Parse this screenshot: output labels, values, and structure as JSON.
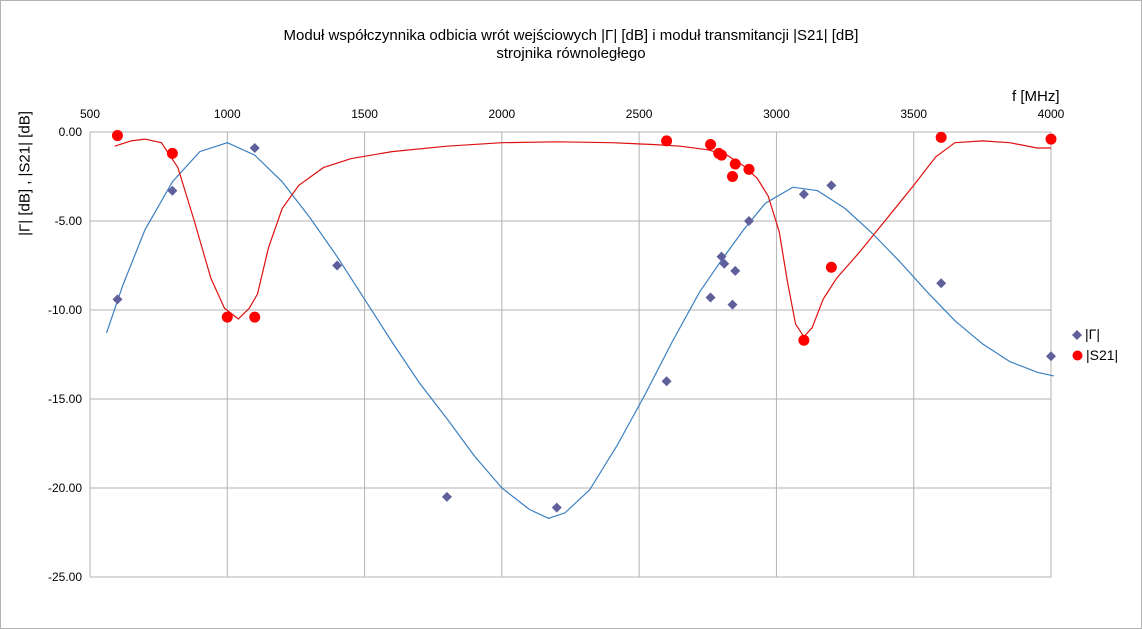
{
  "chart_data": {
    "type": "scatter",
    "title": "Moduł współczynnika odbicia wrót wejściowych |Γ| [dB] i moduł transmitancji   |S21| [dB]",
    "subtitle": "strojnika równoległego",
    "xlabel": "f [MHz]",
    "ylabel": "|Γ| [dB] , |S21| [dB]",
    "xlim": [
      500,
      4000
    ],
    "ylim": [
      -25,
      0
    ],
    "x_ticks": [
      "500",
      "1000",
      "1500",
      "2000",
      "2500",
      "3000",
      "3500",
      "4000"
    ],
    "y_ticks": [
      "0.00",
      "-5.00",
      "-10.00",
      "-15.00",
      "-20.00",
      "-25.00"
    ],
    "x_axis_position": "top",
    "grid": true,
    "legend_position": "right",
    "series": [
      {
        "name": "|Γ|",
        "color": "#5f5f9c",
        "marker": "diamond",
        "line_color": "#3b7fc0",
        "points": [
          [
            600,
            -9.4
          ],
          [
            800,
            -3.3
          ],
          [
            1100,
            -0.9
          ],
          [
            1400,
            -7.5
          ],
          [
            1800,
            -20.5
          ],
          [
            2200,
            -21.1
          ],
          [
            2600,
            -14.0
          ],
          [
            2760,
            -9.3
          ],
          [
            2800,
            -7.0
          ],
          [
            2810,
            -7.4
          ],
          [
            2840,
            -9.7
          ],
          [
            2850,
            -7.8
          ],
          [
            2900,
            -5.0
          ],
          [
            3100,
            -3.5
          ],
          [
            3200,
            -3.0
          ],
          [
            3600,
            -8.5
          ],
          [
            4000,
            -12.6
          ]
        ],
        "trend": [
          [
            560,
            -11.3
          ],
          [
            620,
            -8.6
          ],
          [
            700,
            -5.5
          ],
          [
            800,
            -2.8
          ],
          [
            900,
            -1.1
          ],
          [
            1000,
            -0.6
          ],
          [
            1100,
            -1.3
          ],
          [
            1200,
            -2.8
          ],
          [
            1300,
            -4.8
          ],
          [
            1400,
            -7.0
          ],
          [
            1500,
            -9.4
          ],
          [
            1600,
            -11.8
          ],
          [
            1700,
            -14.1
          ],
          [
            1800,
            -16.1
          ],
          [
            1900,
            -18.2
          ],
          [
            2000,
            -20.0
          ],
          [
            2100,
            -21.2
          ],
          [
            2170,
            -21.7
          ],
          [
            2230,
            -21.4
          ],
          [
            2320,
            -20.1
          ],
          [
            2420,
            -17.6
          ],
          [
            2520,
            -14.8
          ],
          [
            2620,
            -11.8
          ],
          [
            2720,
            -9.0
          ],
          [
            2800,
            -7.2
          ],
          [
            2880,
            -5.5
          ],
          [
            2960,
            -4.0
          ],
          [
            3060,
            -3.1
          ],
          [
            3150,
            -3.3
          ],
          [
            3250,
            -4.3
          ],
          [
            3350,
            -5.7
          ],
          [
            3450,
            -7.3
          ],
          [
            3550,
            -9.0
          ],
          [
            3650,
            -10.6
          ],
          [
            3750,
            -11.9
          ],
          [
            3850,
            -12.9
          ],
          [
            3950,
            -13.5
          ],
          [
            4010,
            -13.7
          ]
        ]
      },
      {
        "name": "|S21|",
        "color": "#ff0000",
        "marker": "circle",
        "line_color": "#e01010",
        "points": [
          [
            600,
            -0.2
          ],
          [
            800,
            -1.2
          ],
          [
            1000,
            -10.4
          ],
          [
            1100,
            -10.4
          ],
          [
            2600,
            -0.5
          ],
          [
            2760,
            -0.7
          ],
          [
            2790,
            -1.2
          ],
          [
            2800,
            -1.3
          ],
          [
            2840,
            -2.5
          ],
          [
            2850,
            -1.8
          ],
          [
            2900,
            -2.1
          ],
          [
            3100,
            -11.7
          ],
          [
            3200,
            -7.6
          ],
          [
            3600,
            -0.3
          ],
          [
            4000,
            -0.4
          ]
        ],
        "trend": [
          [
            590,
            -0.8
          ],
          [
            650,
            -0.5
          ],
          [
            700,
            -0.4
          ],
          [
            760,
            -0.6
          ],
          [
            820,
            -2.0
          ],
          [
            880,
            -5.0
          ],
          [
            940,
            -8.2
          ],
          [
            990,
            -9.9
          ],
          [
            1040,
            -10.5
          ],
          [
            1080,
            -9.9
          ],
          [
            1110,
            -9.1
          ],
          [
            1150,
            -6.5
          ],
          [
            1200,
            -4.3
          ],
          [
            1260,
            -3.0
          ],
          [
            1350,
            -2.0
          ],
          [
            1450,
            -1.5
          ],
          [
            1600,
            -1.1
          ],
          [
            1800,
            -0.8
          ],
          [
            2000,
            -0.6
          ],
          [
            2200,
            -0.55
          ],
          [
            2400,
            -0.6
          ],
          [
            2550,
            -0.7
          ],
          [
            2650,
            -0.8
          ],
          [
            2750,
            -1.0
          ],
          [
            2820,
            -1.3
          ],
          [
            2880,
            -1.9
          ],
          [
            2930,
            -2.6
          ],
          [
            2970,
            -3.6
          ],
          [
            3010,
            -5.6
          ],
          [
            3040,
            -8.4
          ],
          [
            3070,
            -10.8
          ],
          [
            3100,
            -11.5
          ],
          [
            3130,
            -11.0
          ],
          [
            3170,
            -9.4
          ],
          [
            3220,
            -8.2
          ],
          [
            3300,
            -6.8
          ],
          [
            3400,
            -4.9
          ],
          [
            3500,
            -3.0
          ],
          [
            3580,
            -1.4
          ],
          [
            3650,
            -0.6
          ],
          [
            3750,
            -0.5
          ],
          [
            3850,
            -0.6
          ],
          [
            3950,
            -0.9
          ],
          [
            4000,
            -0.9
          ]
        ]
      }
    ]
  }
}
